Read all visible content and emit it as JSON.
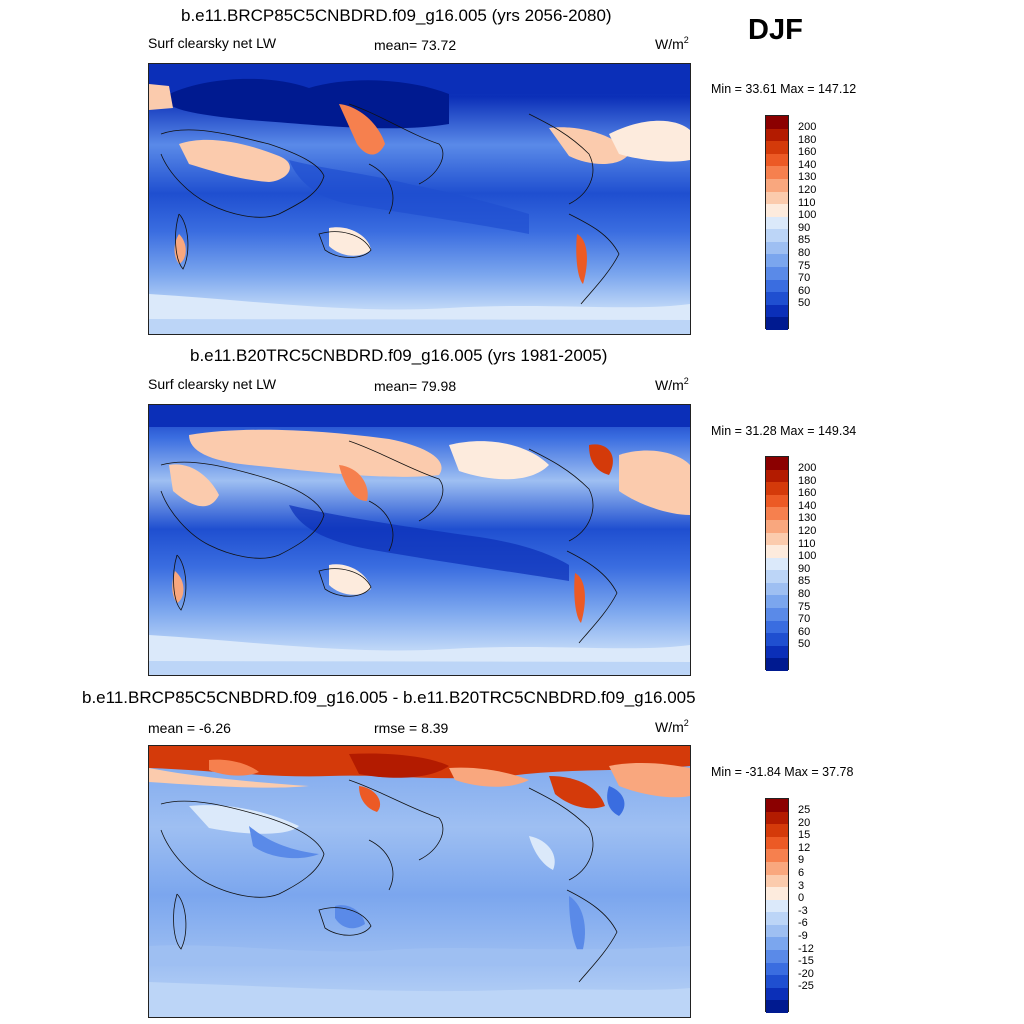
{
  "season": "DJF",
  "panels": [
    {
      "title": "b.e11.BRCP85C5CNBDRD.f09_g16.005 (yrs 2056-2080)",
      "left_label": "Surf clearsky net LW",
      "mid_label": "mean=  73.72",
      "units": "W/m",
      "units_sup": "2",
      "minmax": "Min =  33.61 Max = 147.12",
      "colorbar": {
        "labels": [
          "200",
          "180",
          "160",
          "140",
          "130",
          "120",
          "110",
          "100",
          "90",
          "85",
          "80",
          "75",
          "70",
          "60",
          "50"
        ],
        "colors": [
          "#8b0000",
          "#b31b00",
          "#d43a0a",
          "#ec5a25",
          "#f6804e",
          "#f9a77e",
          "#fbcbad",
          "#fdebdd",
          "#dbe9fa",
          "#bcd5f7",
          "#9ebff2",
          "#7ba6ee",
          "#5a8ae8",
          "#3a6de0",
          "#1f4fd0",
          "#0b2fb8",
          "#001a90"
        ]
      }
    },
    {
      "title": "b.e11.B20TRC5CNBDRD.f09_g16.005 (yrs 1981-2005)",
      "left_label": "Surf clearsky net LW",
      "mid_label": "mean=  79.98",
      "units": "W/m",
      "units_sup": "2",
      "minmax": "Min =  31.28 Max = 149.34",
      "colorbar": {
        "labels": [
          "200",
          "180",
          "160",
          "140",
          "130",
          "120",
          "110",
          "100",
          "90",
          "85",
          "80",
          "75",
          "70",
          "60",
          "50"
        ],
        "colors": [
          "#8b0000",
          "#b31b00",
          "#d43a0a",
          "#ec5a25",
          "#f6804e",
          "#f9a77e",
          "#fbcbad",
          "#fdebdd",
          "#dbe9fa",
          "#bcd5f7",
          "#9ebff2",
          "#7ba6ee",
          "#5a8ae8",
          "#3a6de0",
          "#1f4fd0",
          "#0b2fb8",
          "#001a90"
        ]
      }
    },
    {
      "title": "b.e11.BRCP85C5CNBDRD.f09_g16.005 - b.e11.B20TRC5CNBDRD.f09_g16.005",
      "left_label": "mean =  -6.26",
      "mid_label": "rmse =    8.39",
      "units": "W/m",
      "units_sup": "2",
      "minmax": "Min = -31.84 Max =  37.78",
      "colorbar": {
        "labels": [
          "25",
          "20",
          "15",
          "12",
          "9",
          "6",
          "3",
          "0",
          "-3",
          "-6",
          "-9",
          "-12",
          "-15",
          "-20",
          "-25"
        ],
        "colors": [
          "#8b0000",
          "#b31b00",
          "#d43a0a",
          "#ec5a25",
          "#f6804e",
          "#f9a77e",
          "#fbcbad",
          "#fdebdd",
          "#dbe9fa",
          "#bcd5f7",
          "#9ebff2",
          "#7ba6ee",
          "#5a8ae8",
          "#3a6de0",
          "#1f4fd0",
          "#0b2fb8",
          "#001a90"
        ]
      }
    }
  ]
}
